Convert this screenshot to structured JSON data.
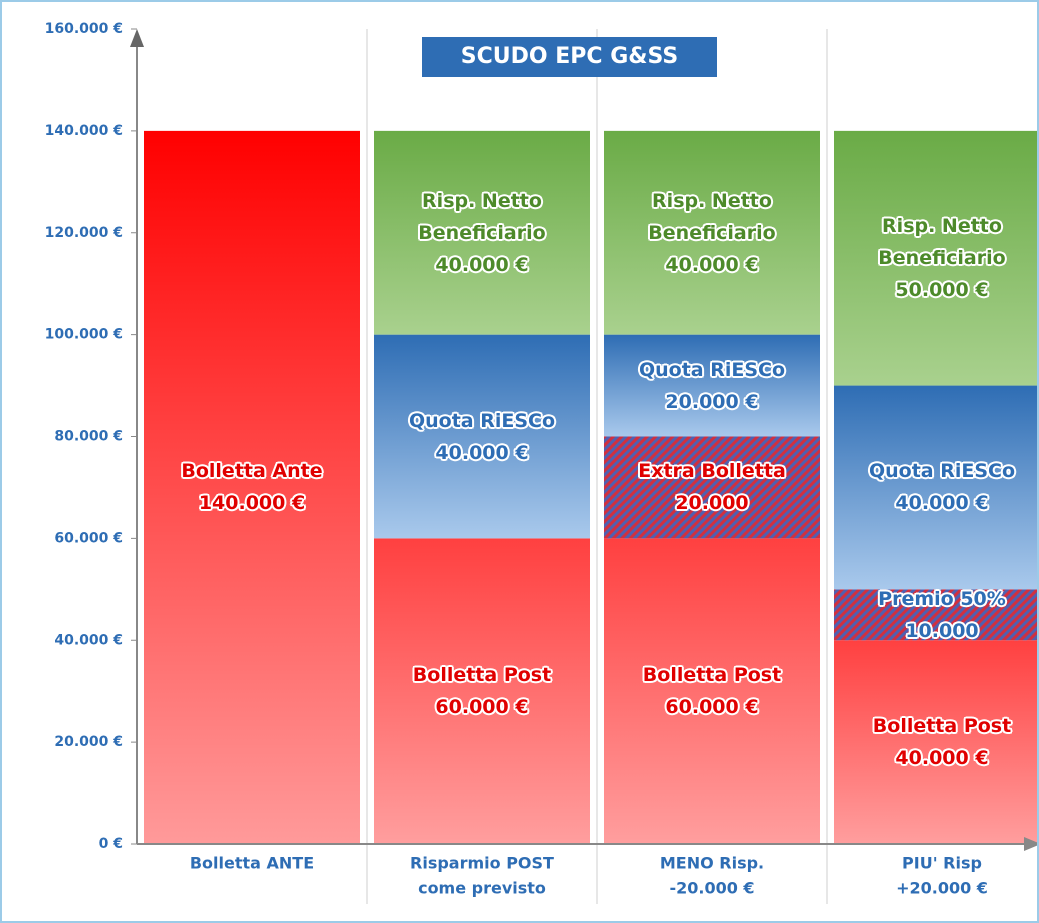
{
  "chart_data": {
    "type": "stacked_bar",
    "title": "SCUDO EPC G&SS",
    "categories": [
      [
        "Bolletta ANTE"
      ],
      [
        "Risparmio POST",
        "come previsto"
      ],
      [
        "MENO Risp.",
        "-20.000 €"
      ],
      [
        "PIU' Risp",
        "+20.000 €"
      ]
    ],
    "series": [
      {
        "name": "Bolletta Ante",
        "color": [
          "#ff0000",
          "#ff9a9a"
        ],
        "label_color": "#e00000",
        "values": [
          140000,
          null,
          null,
          null
        ],
        "value_labels": [
          "140.000 €",
          null,
          null,
          null
        ]
      },
      {
        "name": "Bolletta Post",
        "color": [
          "#ff4040",
          "#ff9e9e"
        ],
        "label_color": "#e00000",
        "values": [
          null,
          60000,
          60000,
          40000
        ],
        "value_labels": [
          null,
          "60.000 €",
          "60.000 €",
          "40.000 €"
        ]
      },
      {
        "name": "Premio 50%",
        "color": [
          "#d03040",
          "#5060b0"
        ],
        "pattern": "hatch",
        "label_color": "#2e6db4",
        "values": [
          null,
          null,
          null,
          10000
        ],
        "value_labels": [
          null,
          null,
          null,
          "10.000"
        ]
      },
      {
        "name": "Extra Bolletta",
        "color": [
          "#d03040",
          "#5060b0"
        ],
        "pattern": "hatch",
        "label_color": "#e00000",
        "values": [
          null,
          null,
          20000,
          null
        ],
        "value_labels": [
          null,
          null,
          "20.000",
          null
        ]
      },
      {
        "name": "Quota RiESCo",
        "color": [
          "#2e6db4",
          "#a9c9ec"
        ],
        "label_color": "#2e6db4",
        "values": [
          null,
          40000,
          20000,
          40000
        ],
        "value_labels": [
          null,
          "40.000 €",
          "20.000 €",
          "40.000 €"
        ]
      },
      {
        "name": "Risp. Netto Beneficiario",
        "color": [
          "#6aab46",
          "#a9d18e"
        ],
        "label_color": "#4d8a2a",
        "values": [
          null,
          40000,
          40000,
          50000
        ],
        "value_labels": [
          null,
          "40.000 €",
          "40.000 €",
          "50.000 €"
        ]
      }
    ],
    "ylim": [
      0,
      160000
    ],
    "yticks": [
      {
        "value": 0,
        "label": "0 €"
      },
      {
        "value": 20000,
        "label": "20.000 €"
      },
      {
        "value": 40000,
        "label": "40.000 €"
      },
      {
        "value": 60000,
        "label": "60.000 €"
      },
      {
        "value": 80000,
        "label": "80.000 €"
      },
      {
        "value": 100000,
        "label": "100.000 €"
      },
      {
        "value": 120000,
        "label": "120.000 €"
      },
      {
        "value": 140000,
        "label": "140.000 €"
      },
      {
        "value": 160000,
        "label": "160.000 €"
      }
    ]
  }
}
